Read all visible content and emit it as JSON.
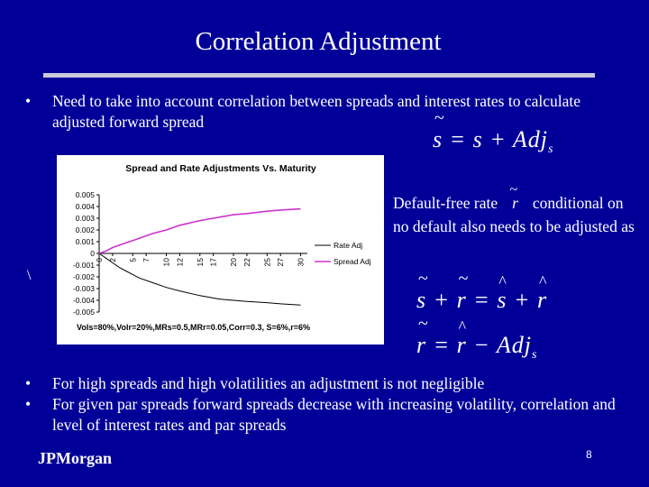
{
  "slide": {
    "title": "Correlation Adjustment",
    "bullets_top": [
      "Need to take into account correlation between spreads and interest rates to calculate adjusted forward spread"
    ],
    "equation_1": {
      "lhs": "s",
      "rhs_var": "s",
      "op1": "=",
      "op2": "+",
      "adj": "Adj",
      "sub": "s"
    },
    "side_text": {
      "before": "Default-free rate",
      "symbol": "r",
      "after": "conditional on no default also needs to be adjusted as"
    },
    "stray_char": "\\",
    "equation_2": {
      "a": "s",
      "b": "r",
      "c": "s",
      "d": "r",
      "plus": "+",
      "eq": "="
    },
    "equation_3": {
      "lhs": "r",
      "rhs": "r",
      "eq": "=",
      "minus": "−",
      "adj": "Adj",
      "sub": "s"
    },
    "bullets_bottom": [
      "For high spreads and high volatilities an adjustment is not negligible",
      "For given par spreads forward spreads decrease with increasing volatility, correlation and level of interest rates and par spreads"
    ],
    "footer": "JPMorgan",
    "page_number": "8"
  },
  "colors": {
    "background": "#000099",
    "rate_adj": "#000000",
    "spread_adj": "#cc33cc",
    "chart_bg": "#ffffff"
  },
  "chart_data": {
    "type": "line",
    "title": "Spread and Rate Adjustments Vs. Maturity",
    "subtitle": "Vols=80%,Volr=20%,MRs=0.5,MRr=0.05,Corr=0.3, S=6%,r=6%",
    "x_ticks": [
      "0",
      "2",
      "5",
      "7",
      "10",
      "12",
      "15",
      "17",
      "20",
      "22",
      "25",
      "27",
      "30"
    ],
    "xlim": [
      0,
      31
    ],
    "ylim": [
      -0.005,
      0.005
    ],
    "y_ticks": [
      "0.005",
      "0.004",
      "0.003",
      "0.002",
      "0.001",
      "0",
      "-0.001",
      "-0.002",
      "-0.003",
      "-0.004",
      "-0.005"
    ],
    "y_tick_values": [
      0.005,
      0.004,
      0.003,
      0.002,
      0.001,
      0,
      -0.001,
      -0.002,
      -0.003,
      -0.004,
      -0.005
    ],
    "legend": "right",
    "series": [
      {
        "name": "Rate Adj",
        "x": [
          0,
          1,
          2,
          3,
          4,
          5,
          6,
          8,
          10,
          12,
          15,
          18,
          20,
          22,
          25,
          27,
          30
        ],
        "y": [
          0,
          -0.0004,
          -0.0008,
          -0.0012,
          -0.0015,
          -0.0018,
          -0.0021,
          -0.0025,
          -0.0029,
          -0.0032,
          -0.0036,
          -0.0039,
          -0.004,
          -0.0041,
          -0.0042,
          -0.0043,
          -0.0044
        ]
      },
      {
        "name": "Spread Adj",
        "x": [
          0,
          1,
          2,
          3,
          4,
          5,
          6,
          8,
          10,
          12,
          15,
          18,
          20,
          22,
          25,
          27,
          30
        ],
        "y": [
          0,
          0.0002,
          0.0005,
          0.0007,
          0.0009,
          0.0011,
          0.0013,
          0.0017,
          0.002,
          0.0024,
          0.0028,
          0.0031,
          0.0033,
          0.0034,
          0.0036,
          0.0037,
          0.0038
        ]
      }
    ]
  }
}
